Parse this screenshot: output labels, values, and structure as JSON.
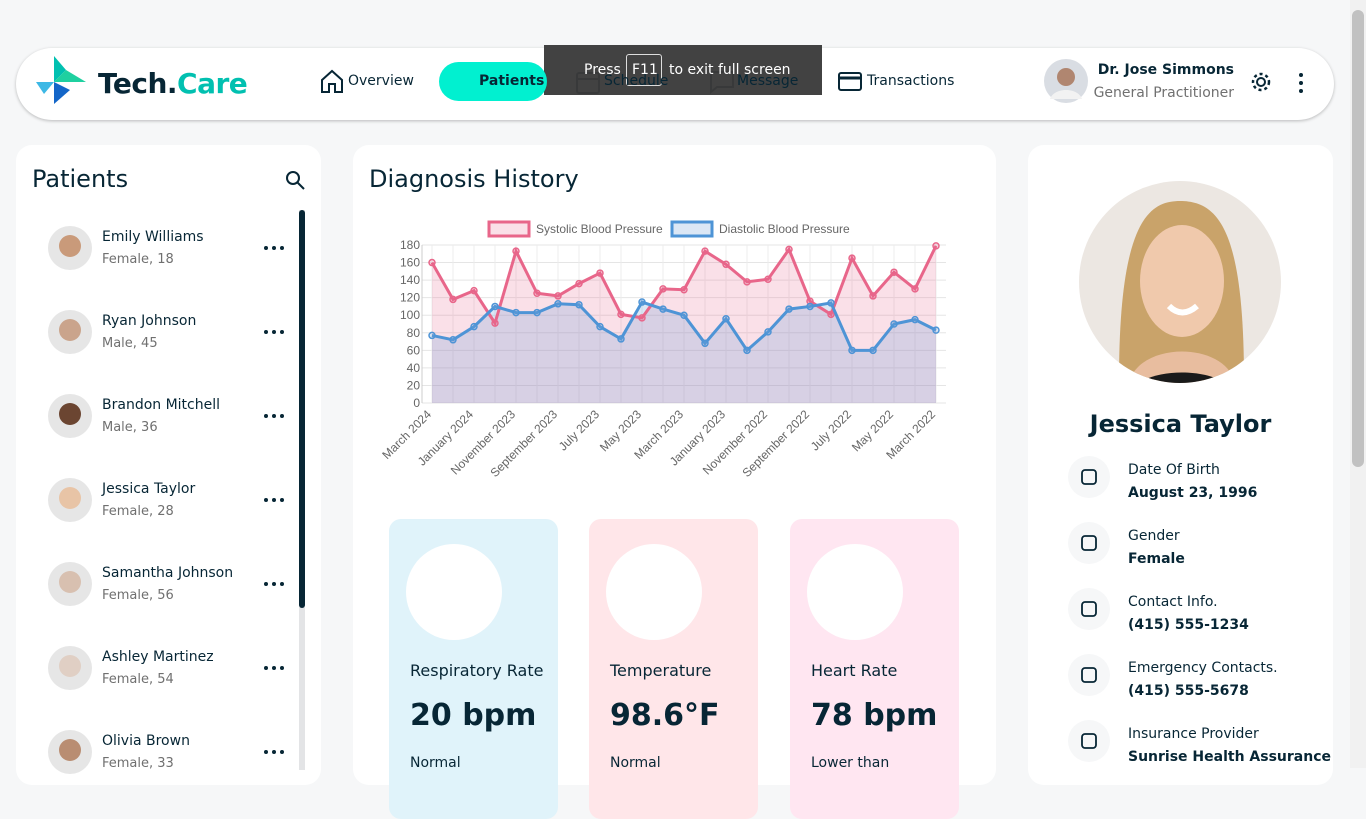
{
  "header": {
    "brand_main": "Tech.",
    "brand_accent": "Care",
    "nav": [
      {
        "label": "Overview"
      },
      {
        "label": "Patients",
        "active": true
      },
      {
        "label": "Schedule"
      },
      {
        "label": "Message"
      },
      {
        "label": "Transactions"
      }
    ],
    "fullscreen_notice": {
      "before": "Press",
      "key": "F11",
      "after": "to exit full screen"
    },
    "doctor": {
      "name": "Dr. Jose Simmons",
      "role": "General Practitioner"
    }
  },
  "patients": {
    "title": "Patients",
    "list": [
      {
        "name": "Emily Williams",
        "details": "Female, 18"
      },
      {
        "name": "Ryan Johnson",
        "details": "Male, 45"
      },
      {
        "name": "Brandon Mitchell",
        "details": "Male, 36"
      },
      {
        "name": "Jessica Taylor",
        "details": "Female, 28"
      },
      {
        "name": "Samantha Johnson",
        "details": "Female, 56"
      },
      {
        "name": "Ashley Martinez",
        "details": "Female, 54"
      },
      {
        "name": "Olivia Brown",
        "details": "Female, 33"
      }
    ]
  },
  "diagnosis": {
    "title": "Diagnosis History",
    "vitals": [
      {
        "label": "Respiratory Rate",
        "value": "20 bpm",
        "status": "Normal"
      },
      {
        "label": "Temperature",
        "value": "98.6°F",
        "status": "Normal"
      },
      {
        "label": "Heart Rate",
        "value": "78 bpm",
        "status": "Lower than"
      }
    ]
  },
  "chart_data": {
    "type": "line",
    "categories": [
      "March 2024",
      null,
      "January 2024",
      null,
      "November 2023",
      null,
      "September 2023",
      null,
      "July 2023",
      null,
      "May 2023",
      null,
      "March 2023",
      null,
      "January 2023",
      null,
      "November 2022",
      null,
      "September 2022",
      null,
      "July 2022",
      null,
      "May 2022",
      null,
      "March 2022"
    ],
    "series": [
      {
        "name": "Systolic Blood Pressure",
        "color": "#e8668a",
        "fill": "rgba(232,102,138,0.2)",
        "values": [
          160,
          118,
          128,
          91,
          173,
          125,
          122,
          136,
          148,
          101,
          97,
          130,
          129,
          173,
          158,
          138,
          141,
          175,
          116,
          101,
          165,
          122,
          149,
          130,
          179
        ]
      },
      {
        "name": "Diastolic Blood Pressure",
        "color": "#4e94d6",
        "fill": "rgba(110,160,215,0.25)",
        "values": [
          77,
          72,
          87,
          110,
          103,
          103,
          113,
          112,
          87,
          73,
          115,
          107,
          100,
          68,
          96,
          60,
          81,
          107,
          110,
          114,
          60,
          60,
          90,
          95,
          83
        ]
      }
    ],
    "ylim": [
      0,
      180
    ],
    "yticks": [
      0,
      20,
      40,
      60,
      80,
      100,
      120,
      140,
      160,
      180
    ],
    "grid": true,
    "legend": "top"
  },
  "profile": {
    "name": "Jessica Taylor",
    "fields": [
      {
        "label": "Date Of Birth",
        "value": "August 23, 1996"
      },
      {
        "label": "Gender",
        "value": "Female"
      },
      {
        "label": "Contact Info.",
        "value": "(415) 555-1234"
      },
      {
        "label": "Emergency Contacts.",
        "value": "(415) 555-5678"
      },
      {
        "label": "Insurance Provider",
        "value": "Sunrise Health Assurance"
      }
    ]
  }
}
